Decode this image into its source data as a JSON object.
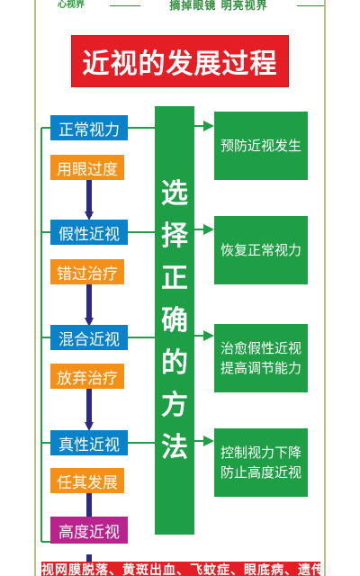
{
  "header": {
    "logo_text": "心视界",
    "slogan": "摘掉眼镜  明亮视界"
  },
  "title": "近视的发展过程",
  "stages": [
    "正常视力",
    "假性近视",
    "混合近视",
    "真性近视",
    "高度近视"
  ],
  "causes": [
    "用眼过度",
    "错过治疗",
    "放弃治疗",
    "任其发展"
  ],
  "method": [
    "选",
    "择",
    "正",
    "确",
    "的",
    "方",
    "法"
  ],
  "outcomes": [
    [
      "预防近视发生"
    ],
    [
      "恢复正常视力"
    ],
    [
      "治愈假性近视",
      "提高调节能力"
    ],
    [
      "控制视力下降",
      "防止高度近视"
    ]
  ],
  "footer": "视网膜脱落、黄斑出血、飞蚊症、眼底病、遗传",
  "colors": {
    "title_red": "#e51d24",
    "stage_blue": "#0a82c9",
    "cause_orange": "#f49018",
    "final_purple": "#b9238d",
    "method_green": "#1e9f45",
    "arrow_navy": "#2a2a7e"
  }
}
